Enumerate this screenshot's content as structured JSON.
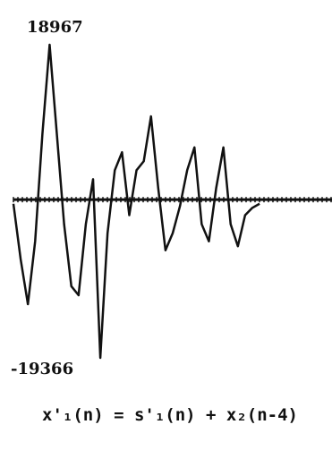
{
  "chart_data": {
    "type": "line",
    "caption": "x'₁(n) = s'₁(n) + x₂(n-4)",
    "x": [
      0,
      1,
      2,
      3,
      4,
      5,
      6,
      7,
      8,
      9,
      10,
      11,
      12,
      13,
      14,
      15,
      16,
      17,
      18,
      19,
      20,
      21,
      22,
      23,
      24,
      25,
      26,
      27,
      28,
      29,
      30,
      31,
      32,
      33,
      34
    ],
    "series": [
      {
        "color": "#111111",
        "values": [
          -500,
          -7300,
          -12800,
          -5100,
          8000,
          18967,
          8000,
          -3000,
          -10600,
          -11700,
          -3000,
          2500,
          -19366,
          -4100,
          3600,
          5800,
          -1900,
          3600,
          4700,
          10200,
          1400,
          -6200,
          -4100,
          -800,
          3600,
          6400,
          -3000,
          -5100,
          1400,
          6400,
          -3000,
          -5700,
          -1900,
          -1000,
          -500
        ]
      }
    ],
    "xlim": [
      0,
      44
    ],
    "ylim": [
      -19366,
      18967
    ],
    "yticks": [
      18967,
      -19366
    ]
  }
}
